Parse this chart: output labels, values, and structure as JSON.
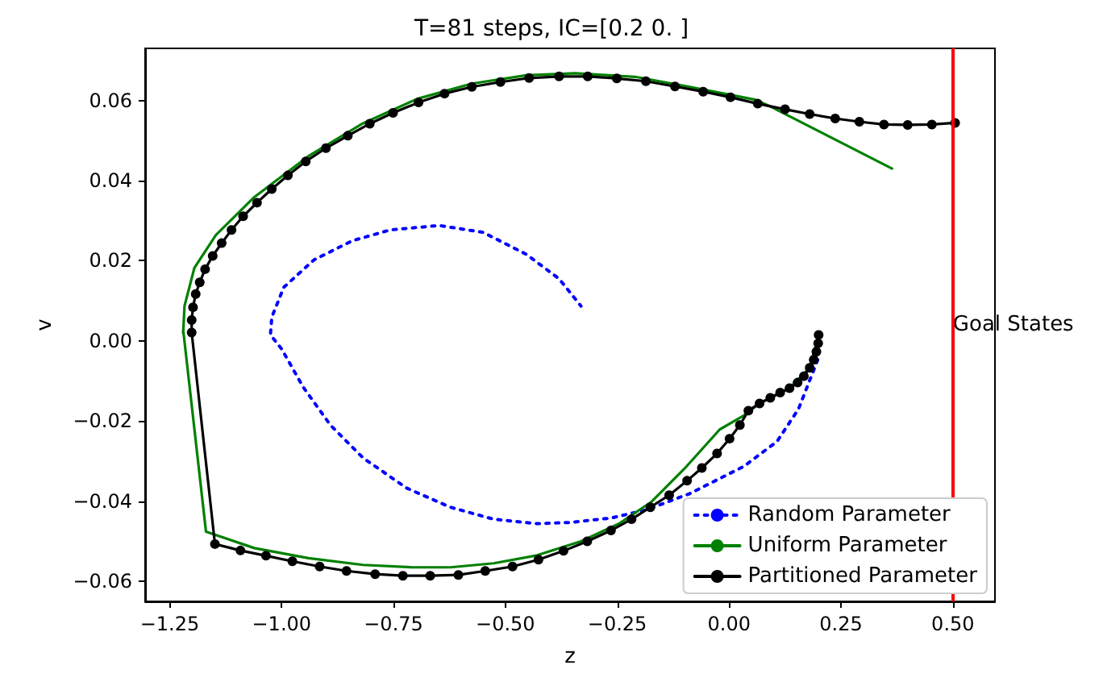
{
  "chart_data": {
    "type": "line",
    "title": "T=81 steps, IC=[0.2 0. ]",
    "xlabel": "z",
    "ylabel": "v",
    "xlim": [
      -1.305,
      0.594
    ],
    "ylim": [
      -0.065,
      0.073
    ],
    "xticks": [
      {
        "value": -1.25,
        "label": "−1.25"
      },
      {
        "value": -1,
        "label": "−1.00"
      },
      {
        "value": -0.75,
        "label": "−0.75"
      },
      {
        "value": -0.5,
        "label": "−0.50"
      },
      {
        "value": -0.25,
        "label": "−0.25"
      },
      {
        "value": 0,
        "label": "0.00"
      },
      {
        "value": 0.25,
        "label": "0.25"
      },
      {
        "value": 0.5,
        "label": "0.50"
      }
    ],
    "yticks": [
      {
        "value": -0.06,
        "label": "−0.06"
      },
      {
        "value": -0.04,
        "label": "−0.04"
      },
      {
        "value": -0.02,
        "label": "−0.02"
      },
      {
        "value": 0,
        "label": "0.00"
      },
      {
        "value": 0.02,
        "label": "0.02"
      },
      {
        "value": 0.04,
        "label": "0.04"
      },
      {
        "value": 0.06,
        "label": "0.06"
      }
    ],
    "grid": false,
    "legend": "bottom right",
    "ref_lines": [
      {
        "axis": "x",
        "value": 0.5,
        "label": "Goal States",
        "color": "#ff0000"
      }
    ],
    "series": [
      {
        "name": "Random Parameter",
        "color": "#0000ff",
        "line_style": "dotted",
        "marker": "none",
        "x": [
          0.198,
          0.155,
          0.107,
          0.033,
          -0.088,
          -0.186,
          -0.264,
          -0.356,
          -0.429,
          -0.526,
          -0.623,
          -0.721,
          -0.818,
          -0.891,
          -0.952,
          -1.0,
          -1.025,
          -1.022,
          -0.995,
          -0.928,
          -0.842,
          -0.757,
          -0.648,
          -0.55,
          -0.453,
          -0.38,
          -0.331
        ],
        "values": [
          -0.0047,
          -0.017,
          -0.0251,
          -0.0313,
          -0.0381,
          -0.0422,
          -0.0442,
          -0.0453,
          -0.0456,
          -0.0445,
          -0.0415,
          -0.0367,
          -0.0292,
          -0.021,
          -0.0115,
          -0.002,
          0.0015,
          0.0059,
          0.0134,
          0.0202,
          0.025,
          0.0277,
          0.0288,
          0.0271,
          0.0216,
          0.0155,
          0.0087
        ]
      },
      {
        "name": "Uniform Parameter",
        "color": "#008000",
        "line_style": "solid",
        "marker": "none",
        "x": [
          0.2,
          0.18,
          0.135,
          0.068,
          0.033,
          -0.021,
          -0.1,
          -0.173,
          -0.246,
          -0.331,
          -0.429,
          -0.526,
          -0.623,
          -0.709,
          -0.818,
          -0.94,
          -1.061,
          -1.169,
          -1.22,
          -1.22,
          -1.217,
          -1.195,
          -1.147,
          -1.061,
          -0.94,
          -0.818,
          -0.697,
          -0.575,
          -0.453,
          -0.344,
          -0.21,
          -0.088,
          0.058,
          0.094,
          0.364
        ],
        "values": [
          0.0015,
          -0.0067,
          -0.0118,
          -0.0156,
          -0.0186,
          -0.0221,
          -0.0319,
          -0.0401,
          -0.0456,
          -0.05,
          -0.0535,
          -0.0555,
          -0.0565,
          -0.0565,
          -0.0559,
          -0.0542,
          -0.0517,
          -0.0476,
          0.0028,
          0.0019,
          0.0087,
          0.0182,
          0.0264,
          0.0359,
          0.0461,
          0.0543,
          0.0604,
          0.0642,
          0.0663,
          0.0668,
          0.0659,
          0.0634,
          0.0602,
          0.0584,
          0.043
        ]
      },
      {
        "name": "Partitioned Parameter",
        "color": "#000000",
        "line_style": "solid",
        "marker": "circle",
        "x": [
          0.2,
          0.199,
          0.195,
          0.189,
          0.18,
          0.167,
          0.153,
          0.135,
          0.114,
          0.092,
          0.068,
          0.043,
          0.024,
          0.001,
          -0.027,
          -0.061,
          -0.094,
          -0.134,
          -0.176,
          -0.218,
          -0.264,
          -0.317,
          -0.37,
          -0.426,
          -0.484,
          -0.545,
          -0.605,
          -0.668,
          -0.729,
          -0.791,
          -0.855,
          -0.915,
          -0.976,
          -1.035,
          -1.092,
          -1.149,
          -1.201,
          -1.201,
          -1.198,
          -1.192,
          -1.183,
          -1.171,
          -1.154,
          -1.134,
          -1.112,
          -1.086,
          -1.055,
          -1.022,
          -0.986,
          -0.946,
          -0.901,
          -0.852,
          -0.803,
          -0.751,
          -0.694,
          -0.636,
          -0.575,
          -0.511,
          -0.447,
          -0.38,
          -0.316,
          -0.251,
          -0.186,
          -0.121,
          -0.058,
          0.003,
          0.064,
          0.125,
          0.18,
          0.237,
          0.291,
          0.346,
          0.399,
          0.453,
          0.505
        ],
        "values": [
          0.0015,
          -0.0006,
          -0.0027,
          -0.0047,
          -0.0067,
          -0.0088,
          -0.0104,
          -0.0118,
          -0.0129,
          -0.0142,
          -0.0156,
          -0.0174,
          -0.021,
          -0.0244,
          -0.0281,
          -0.0317,
          -0.0349,
          -0.0385,
          -0.0415,
          -0.0445,
          -0.0473,
          -0.05,
          -0.0524,
          -0.0546,
          -0.0563,
          -0.0574,
          -0.0584,
          -0.0586,
          -0.0586,
          -0.0582,
          -0.0574,
          -0.0563,
          -0.055,
          -0.0536,
          -0.0523,
          -0.0507,
          0.0021,
          0.0052,
          0.0084,
          0.0117,
          0.0146,
          0.0179,
          0.0212,
          0.0244,
          0.0277,
          0.0311,
          0.0345,
          0.0379,
          0.0413,
          0.0448,
          0.0481,
          0.0512,
          0.0542,
          0.0569,
          0.0595,
          0.0617,
          0.0634,
          0.0646,
          0.0656,
          0.066,
          0.066,
          0.0655,
          0.0648,
          0.0635,
          0.0622,
          0.0608,
          0.0592,
          0.0578,
          0.0566,
          0.0555,
          0.0547,
          0.054,
          0.0539,
          0.054,
          0.0544
        ]
      }
    ]
  }
}
